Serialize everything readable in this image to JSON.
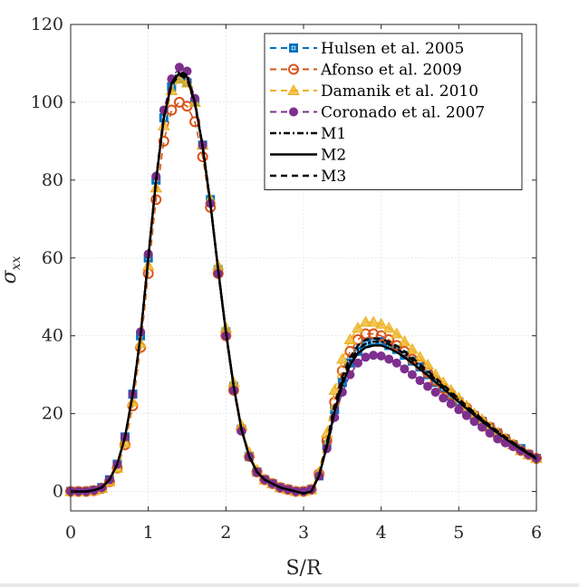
{
  "chart_data": {
    "type": "line",
    "title": "",
    "xlabel": "S/R",
    "ylabel": "σ_xx",
    "xlim": [
      0,
      6
    ],
    "ylim": [
      -5,
      120
    ],
    "xticks": [
      0,
      1,
      2,
      3,
      4,
      5,
      6
    ],
    "yticks": [
      0,
      20,
      40,
      60,
      80,
      100,
      120
    ],
    "grid": true,
    "legend_position": "top-right",
    "series": [
      {
        "name": "Hulsen et al. 2005",
        "color": "#0072BD",
        "marker": "square",
        "line": "dashed",
        "x": [
          0,
          0.1,
          0.2,
          0.3,
          0.4,
          0.5,
          0.6,
          0.7,
          0.8,
          0.9,
          1.0,
          1.1,
          1.2,
          1.3,
          1.4,
          1.5,
          1.6,
          1.7,
          1.8,
          1.9,
          2.0,
          2.1,
          2.2,
          2.3,
          2.4,
          2.5,
          2.6,
          2.7,
          2.8,
          2.9,
          3.0,
          3.1,
          3.2,
          3.3,
          3.4,
          3.5,
          3.6,
          3.7,
          3.8,
          3.9,
          4.0,
          4.1,
          4.2,
          4.3,
          4.4,
          4.5,
          4.6,
          4.7,
          4.8,
          4.9,
          5.0,
          5.1,
          5.2,
          5.3,
          5.4,
          5.5,
          5.6,
          5.7,
          5.8,
          5.9,
          6.0
        ],
        "values": [
          0,
          0,
          0,
          0.3,
          1,
          3,
          7,
          14,
          25,
          40,
          60,
          80,
          96,
          104,
          106,
          105,
          100,
          89,
          75,
          57,
          41,
          27,
          16,
          9,
          5,
          3,
          2,
          1,
          0.5,
          0,
          0,
          0.5,
          4,
          12,
          21,
          28,
          33,
          36,
          38,
          38.5,
          38.5,
          37.5,
          36.5,
          35,
          33.5,
          32,
          30,
          28,
          26.5,
          24.5,
          23,
          21,
          19.5,
          18,
          16.5,
          15,
          13.5,
          12,
          11,
          9.5,
          8.5
        ]
      },
      {
        "name": "Afonso et al. 2009",
        "color": "#D95319",
        "marker": "circle-open",
        "line": "dashed",
        "x": [
          0,
          0.1,
          0.2,
          0.3,
          0.4,
          0.5,
          0.6,
          0.7,
          0.8,
          0.9,
          1.0,
          1.1,
          1.2,
          1.3,
          1.4,
          1.5,
          1.6,
          1.7,
          1.8,
          1.9,
          2.0,
          2.1,
          2.2,
          2.3,
          2.4,
          2.5,
          2.6,
          2.7,
          2.8,
          2.9,
          3.0,
          3.1,
          3.2,
          3.3,
          3.4,
          3.5,
          3.6,
          3.7,
          3.8,
          3.9,
          4.0,
          4.1,
          4.2,
          4.3,
          4.4,
          4.5,
          4.6,
          4.7,
          4.8,
          4.9,
          5.0,
          5.1,
          5.2,
          5.3,
          5.4,
          5.5,
          5.6,
          5.7,
          5.8,
          5.9,
          6.0
        ],
        "values": [
          0,
          0,
          0,
          0.2,
          0.8,
          2.5,
          6,
          12,
          22,
          37,
          56,
          75,
          90,
          98,
          100,
          99,
          95,
          86,
          73,
          56,
          40,
          26,
          16,
          9,
          5,
          3,
          2,
          1,
          0.5,
          0,
          0,
          0.5,
          4.5,
          13,
          23,
          31,
          36,
          39,
          40.5,
          40.5,
          40,
          39,
          37.5,
          36,
          34,
          32.5,
          30.5,
          28.5,
          26.5,
          25,
          23,
          21.5,
          19.5,
          18,
          16.5,
          15,
          13.5,
          12,
          10.5,
          9.5,
          8.5
        ]
      },
      {
        "name": "Damanik et al. 2010",
        "color": "#EDB120",
        "marker": "triangle",
        "line": "dashed",
        "x": [
          0,
          0.1,
          0.2,
          0.3,
          0.4,
          0.5,
          0.6,
          0.7,
          0.8,
          0.9,
          1.0,
          1.1,
          1.2,
          1.3,
          1.4,
          1.5,
          1.6,
          1.7,
          1.8,
          1.9,
          2.0,
          2.1,
          2.2,
          2.3,
          2.4,
          2.5,
          2.6,
          2.7,
          2.8,
          2.9,
          3.0,
          3.1,
          3.2,
          3.3,
          3.4,
          3.5,
          3.6,
          3.7,
          3.8,
          3.9,
          4.0,
          4.1,
          4.2,
          4.3,
          4.4,
          4.5,
          4.6,
          4.7,
          4.8,
          4.9,
          5.0,
          5.1,
          5.2,
          5.3,
          5.4,
          5.5,
          5.6,
          5.7,
          5.8,
          5.9,
          6.0
        ],
        "values": [
          0,
          0,
          0,
          0.2,
          0.8,
          2.5,
          6,
          12.5,
          23,
          38,
          58,
          78,
          94,
          103,
          106,
          105,
          100,
          89,
          75,
          58,
          42,
          28,
          17,
          10,
          5.5,
          3,
          2,
          1,
          0.5,
          0,
          0,
          0.5,
          5,
          15,
          26,
          34,
          39,
          42,
          43.5,
          43.5,
          43,
          42,
          40.5,
          38.5,
          36.5,
          34.5,
          32.5,
          30,
          28,
          26,
          24,
          22,
          20,
          18.5,
          16.5,
          15,
          13.5,
          12,
          10.5,
          9.5,
          8.5
        ]
      },
      {
        "name": "Coronado et al. 2007",
        "color": "#7E2F8E",
        "marker": "circle-filled",
        "line": "dashed",
        "x": [
          0,
          0.1,
          0.2,
          0.3,
          0.4,
          0.5,
          0.6,
          0.7,
          0.8,
          0.9,
          1.0,
          1.1,
          1.2,
          1.3,
          1.4,
          1.5,
          1.6,
          1.7,
          1.8,
          1.9,
          2.0,
          2.1,
          2.2,
          2.3,
          2.4,
          2.5,
          2.6,
          2.7,
          2.8,
          2.9,
          3.0,
          3.1,
          3.2,
          3.3,
          3.4,
          3.5,
          3.6,
          3.7,
          3.8,
          3.9,
          4.0,
          4.1,
          4.2,
          4.3,
          4.4,
          4.5,
          4.6,
          4.7,
          4.8,
          4.9,
          5.0,
          5.1,
          5.2,
          5.3,
          5.4,
          5.5,
          5.6,
          5.7,
          5.8,
          5.9,
          6.0
        ],
        "values": [
          0,
          0,
          0,
          0.3,
          1,
          3,
          7,
          14,
          25,
          41,
          61,
          81,
          98,
          106,
          109,
          108,
          101,
          89,
          74,
          56,
          40,
          26,
          15.5,
          9,
          5,
          3,
          2,
          1,
          0.5,
          0,
          0,
          0.5,
          4,
          11,
          19,
          25.5,
          30,
          33,
          34.5,
          35,
          34.8,
          34,
          33,
          31.5,
          30,
          28.5,
          27,
          25.5,
          24,
          22.5,
          21,
          19.5,
          18,
          16.5,
          15,
          13.5,
          12.5,
          11.5,
          10.5,
          9.5,
          8.5
        ]
      },
      {
        "name": "M1",
        "color": "#000000",
        "marker": "none",
        "line": "dashdot",
        "x": [
          0,
          0.1,
          0.2,
          0.3,
          0.4,
          0.5,
          0.6,
          0.7,
          0.8,
          0.9,
          1.0,
          1.1,
          1.2,
          1.3,
          1.4,
          1.5,
          1.6,
          1.7,
          1.8,
          1.9,
          2.0,
          2.1,
          2.2,
          2.3,
          2.4,
          2.5,
          2.6,
          2.7,
          2.8,
          2.9,
          3.0,
          3.1,
          3.2,
          3.3,
          3.4,
          3.5,
          3.6,
          3.7,
          3.8,
          3.9,
          4.0,
          4.1,
          4.2,
          4.3,
          4.4,
          4.5,
          4.6,
          4.7,
          4.8,
          4.9,
          5.0,
          5.1,
          5.2,
          5.3,
          5.4,
          5.5,
          5.6,
          5.7,
          5.8,
          5.9,
          6.0
        ],
        "values": [
          0,
          0,
          0,
          0.3,
          1,
          3,
          7,
          14,
          25,
          40,
          60,
          80,
          96,
          105,
          108,
          107,
          100,
          89,
          74,
          57,
          41,
          27,
          16,
          9,
          5,
          3,
          2,
          1,
          0.5,
          0,
          -0.5,
          0,
          4,
          12,
          21,
          28.5,
          33.5,
          36.5,
          38,
          38.5,
          38.5,
          37.8,
          36.7,
          35.3,
          33.8,
          32.2,
          30.5,
          28.8,
          27,
          25.2,
          23.5,
          21.7,
          20,
          18.4,
          16.8,
          15.3,
          13.8,
          12.4,
          11,
          9.7,
          8.5
        ]
      },
      {
        "name": "M2",
        "color": "#000000",
        "marker": "none",
        "line": "solid",
        "x": [
          0,
          0.1,
          0.2,
          0.3,
          0.4,
          0.5,
          0.6,
          0.7,
          0.8,
          0.9,
          1.0,
          1.1,
          1.2,
          1.3,
          1.4,
          1.5,
          1.6,
          1.7,
          1.8,
          1.9,
          2.0,
          2.1,
          2.2,
          2.3,
          2.4,
          2.5,
          2.6,
          2.7,
          2.8,
          2.9,
          3.0,
          3.1,
          3.2,
          3.3,
          3.4,
          3.5,
          3.6,
          3.7,
          3.8,
          3.9,
          4.0,
          4.1,
          4.2,
          4.3,
          4.4,
          4.5,
          4.6,
          4.7,
          4.8,
          4.9,
          5.0,
          5.1,
          5.2,
          5.3,
          5.4,
          5.5,
          5.6,
          5.7,
          5.8,
          5.9,
          6.0
        ],
        "values": [
          0,
          0,
          0,
          0.3,
          1,
          3,
          7,
          14,
          25,
          40,
          60,
          80,
          96,
          105,
          107.5,
          106.5,
          100,
          88.5,
          74,
          57,
          41,
          27,
          16,
          9,
          5,
          3,
          2,
          1,
          0.5,
          0,
          -0.5,
          0,
          4,
          11.5,
          20.5,
          27.5,
          32.5,
          35.5,
          37,
          37.5,
          37.5,
          36.8,
          35.8,
          34.5,
          33,
          31.4,
          29.8,
          28.1,
          26.4,
          24.7,
          23,
          21.3,
          19.6,
          18,
          16.5,
          15,
          13.6,
          12.2,
          10.9,
          9.6,
          8.4
        ]
      },
      {
        "name": "M3",
        "color": "#000000",
        "marker": "none",
        "line": "dashed",
        "x": [
          0,
          0.1,
          0.2,
          0.3,
          0.4,
          0.5,
          0.6,
          0.7,
          0.8,
          0.9,
          1.0,
          1.1,
          1.2,
          1.3,
          1.4,
          1.5,
          1.6,
          1.7,
          1.8,
          1.9,
          2.0,
          2.1,
          2.2,
          2.3,
          2.4,
          2.5,
          2.6,
          2.7,
          2.8,
          2.9,
          3.0,
          3.1,
          3.2,
          3.3,
          3.4,
          3.5,
          3.6,
          3.7,
          3.8,
          3.9,
          4.0,
          4.1,
          4.2,
          4.3,
          4.4,
          4.5,
          4.6,
          4.7,
          4.8,
          4.9,
          5.0,
          5.1,
          5.2,
          5.3,
          5.4,
          5.5,
          5.6,
          5.7,
          5.8,
          5.9,
          6.0
        ],
        "values": [
          0,
          0,
          0,
          0.3,
          1,
          3,
          7,
          14,
          25,
          40,
          60,
          80,
          96,
          104.5,
          107,
          106,
          99.5,
          88.5,
          74,
          57,
          41,
          27,
          16,
          9,
          5,
          3,
          2,
          1,
          0.5,
          0,
          -0.5,
          0,
          4.2,
          12.5,
          22,
          29.5,
          34.5,
          37.5,
          39,
          39.3,
          39.2,
          38.5,
          37.4,
          36,
          34.4,
          32.7,
          31,
          29.2,
          27.4,
          25.6,
          23.8,
          22,
          20.3,
          18.6,
          17,
          15.5,
          14,
          12.6,
          11.2,
          9.9,
          8.7
        ]
      }
    ]
  }
}
